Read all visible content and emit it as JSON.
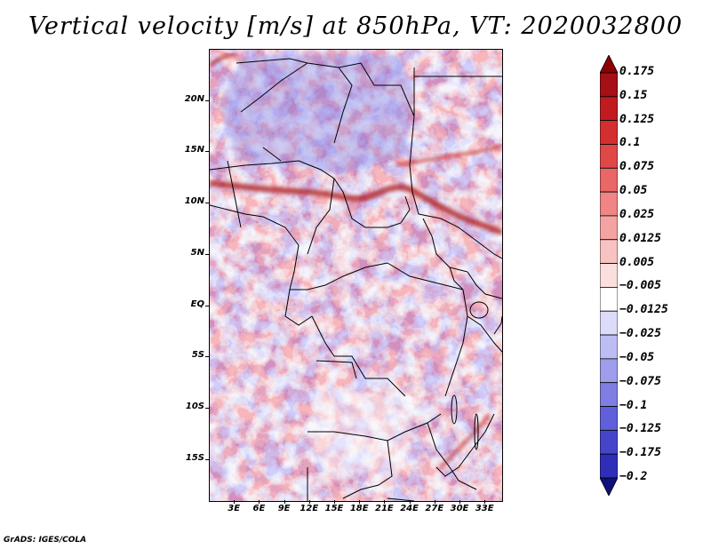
{
  "title": "Vertical velocity [m/s] at 850hPa, VT: 2020032800",
  "credit": "GrADS: IGES/COLA",
  "map": {
    "variable": "Vertical velocity",
    "units": "m/s",
    "level": "850hPa",
    "valid_time": "2020032800",
    "lat_range": [
      -19,
      25
    ],
    "lon_range": [
      0,
      35
    ],
    "lat_ticks": [
      {
        "label": "20N",
        "value": 20
      },
      {
        "label": "15N",
        "value": 15
      },
      {
        "label": "10N",
        "value": 10
      },
      {
        "label": "5N",
        "value": 5
      },
      {
        "label": "EQ",
        "value": 0
      },
      {
        "label": "5S",
        "value": -5
      },
      {
        "label": "10S",
        "value": -10
      },
      {
        "label": "15S",
        "value": -15
      }
    ],
    "lon_ticks": [
      {
        "label": "3E",
        "value": 3
      },
      {
        "label": "6E",
        "value": 6
      },
      {
        "label": "9E",
        "value": 9
      },
      {
        "label": "12E",
        "value": 12
      },
      {
        "label": "15E",
        "value": 15
      },
      {
        "label": "18E",
        "value": 18
      },
      {
        "label": "21E",
        "value": 21
      },
      {
        "label": "24E",
        "value": 24
      },
      {
        "label": "27E",
        "value": 27
      },
      {
        "label": "30E",
        "value": 30
      },
      {
        "label": "33E",
        "value": 33
      }
    ]
  },
  "colorbar": {
    "levels": [
      {
        "label": "0.175",
        "color": "#a50f15"
      },
      {
        "label": "0.15",
        "color": "#c01b1f"
      },
      {
        "label": "0.125",
        "color": "#d32f2f"
      },
      {
        "label": "0.1",
        "color": "#e04848"
      },
      {
        "label": "0.075",
        "color": "#e96767"
      },
      {
        "label": "0.05",
        "color": "#ef8585"
      },
      {
        "label": "0.025",
        "color": "#f4a3a3"
      },
      {
        "label": "0.0125",
        "color": "#f8c2c2"
      },
      {
        "label": "0.005",
        "color": "#fbdede"
      },
      {
        "label": "−0.005",
        "color": "#ffffff"
      },
      {
        "label": "−0.0125",
        "color": "#dcdcfa"
      },
      {
        "label": "−0.025",
        "color": "#bdbdf3"
      },
      {
        "label": "−0.05",
        "color": "#9e9eec"
      },
      {
        "label": "−0.075",
        "color": "#7f7fe3"
      },
      {
        "label": "−0.1",
        "color": "#6060da"
      },
      {
        "label": "−0.125",
        "color": "#4545cc"
      },
      {
        "label": "−0.175",
        "color": "#2e2eb8"
      },
      {
        "label": "−0.2",
        "color": "#1a1a9c"
      }
    ],
    "top_color": "#8b0000",
    "bottom_color": "#10107a"
  },
  "features": {
    "ascent_band": "red",
    "descent_background": "blue",
    "boundaries": "black"
  }
}
